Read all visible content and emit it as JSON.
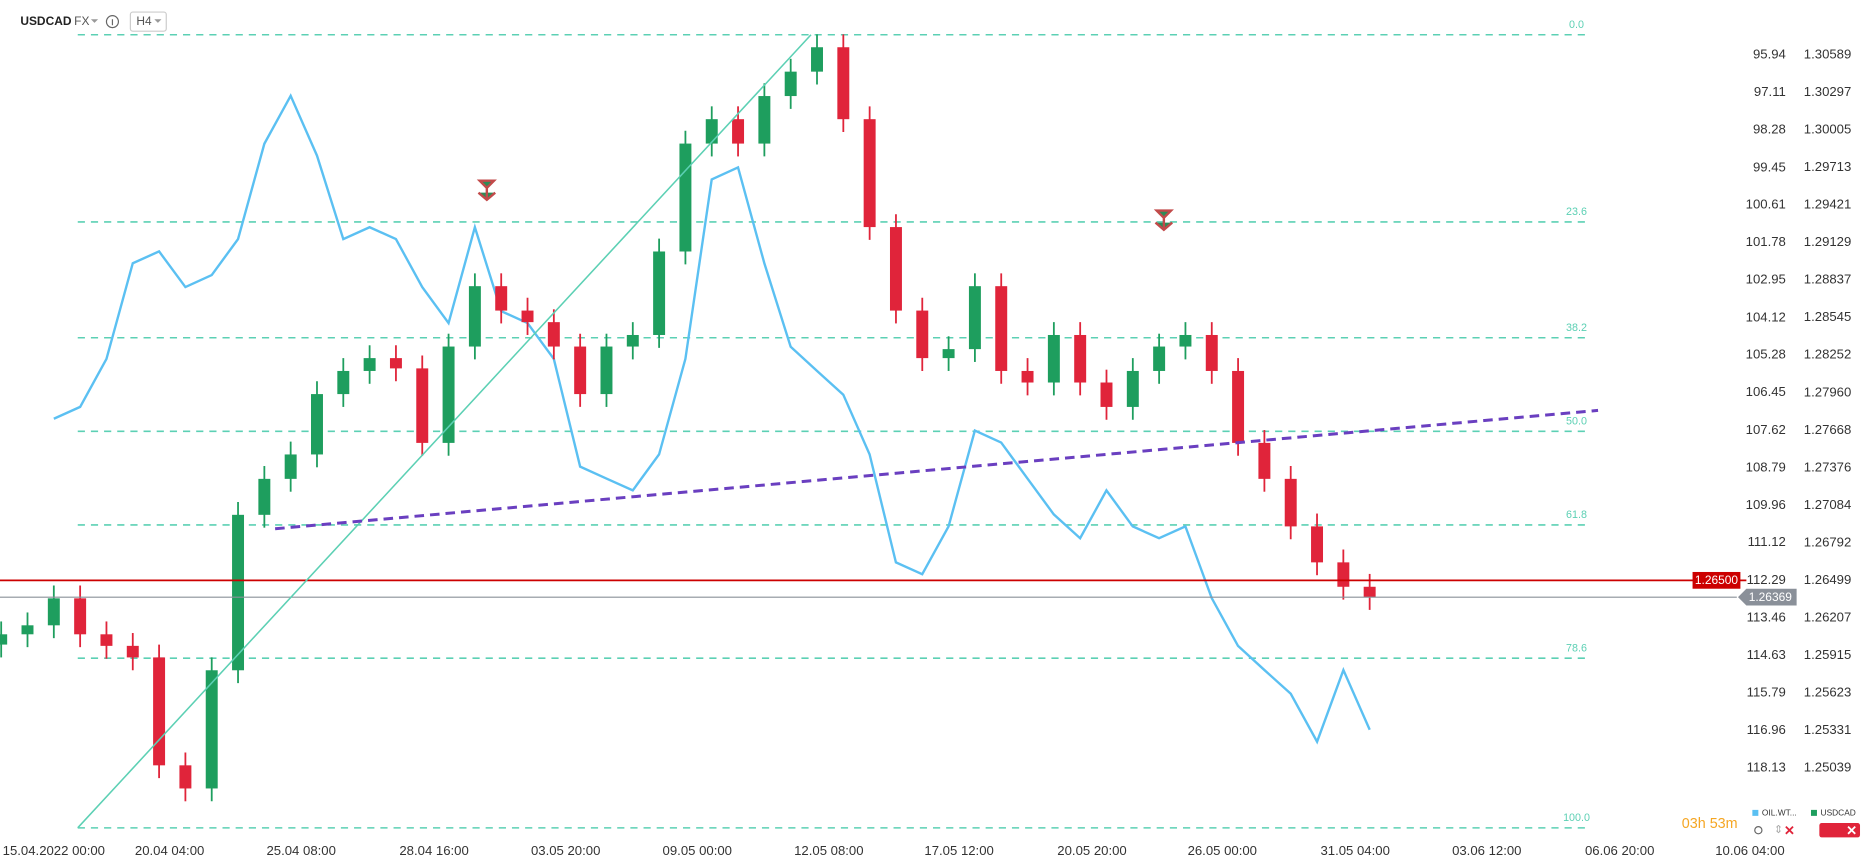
{
  "header": {
    "symbol": "USDCAD",
    "market": "FX",
    "timeframe": "H4"
  },
  "countdown": "03h 53m",
  "chart_data": {
    "type": "candlestick",
    "x": [
      0,
      1,
      2,
      3,
      4,
      5,
      6,
      7,
      8,
      9,
      10,
      11,
      12,
      13,
      14,
      15,
      16,
      17,
      18,
      19,
      20,
      21,
      22,
      23,
      24,
      25,
      26,
      27,
      28,
      29,
      30,
      31,
      32,
      33,
      34,
      35,
      36,
      37,
      38,
      39,
      40,
      41,
      42,
      43,
      44,
      45,
      46,
      47,
      48,
      49,
      50,
      51,
      52
    ],
    "xlim": [
      -0.045,
      70.86
    ],
    "xticks": [
      {
        "value": 2,
        "label": "15.04.2022  00:00"
      },
      {
        "value": 6.4,
        "label": "20.04  04:00"
      },
      {
        "value": 11.4,
        "label": "25.04  08:00"
      },
      {
        "value": 16.45,
        "label": "28.04  16:00"
      },
      {
        "value": 21.45,
        "label": "03.05  20:00"
      },
      {
        "value": 26.45,
        "label": "09.05  00:00"
      },
      {
        "value": 31.45,
        "label": "12.05  08:00"
      },
      {
        "value": 36.4,
        "label": "17.05  12:00"
      },
      {
        "value": 41.45,
        "label": "20.05  20:00"
      },
      {
        "value": 46.4,
        "label": "26.05  00:00"
      },
      {
        "value": 51.45,
        "label": "31.05  04:00"
      },
      {
        "value": 56.45,
        "label": "03.06  12:00"
      },
      {
        "value": 61.5,
        "label": "06.06  20:00"
      },
      {
        "value": 66.45,
        "label": "10.06  04:00"
      }
    ],
    "ylim": [
      1.24499,
      1.31017
    ],
    "yticks": [
      1.30589,
      1.30297,
      1.30005,
      1.29713,
      1.29421,
      1.29129,
      1.28837,
      1.28545,
      1.28252,
      {
        "value": 1.2796,
        "label": "1.27960"
      },
      1.27668,
      1.27376,
      1.27084,
      1.26792,
      1.26499,
      1.26207,
      1.25915,
      1.25623,
      1.25331,
      1.25039
    ],
    "y2lim": [
      94.23,
      120.29
    ],
    "y2_inverted": true,
    "y2ticks": [
      95.94,
      97.11,
      98.28,
      99.45,
      100.61,
      101.78,
      102.95,
      104.12,
      105.28,
      106.45,
      107.62,
      108.79,
      109.96,
      111.12,
      112.29,
      113.46,
      114.63,
      115.79,
      116.96,
      118.13
    ],
    "series": [
      {
        "name": "OIL.WT...",
        "color": "#5bc0f2",
        "axis": "y2",
        "values": [
          null,
          null,
          107.26,
          106.89,
          105.4,
          102.42,
          102.05,
          103.16,
          102.79,
          101.67,
          98.7,
          97.21,
          99.07,
          101.67,
          101.3,
          101.67,
          103.16,
          104.28,
          101.3,
          103.91,
          104.28,
          105.4,
          108.75,
          109.12,
          109.49,
          108.37,
          105.4,
          99.81,
          99.44,
          102.42,
          105.02,
          105.77,
          106.51,
          108.37,
          111.73,
          112.1,
          110.61,
          107.63,
          108.0,
          109.12,
          110.24,
          110.98,
          109.49,
          110.61,
          110.98,
          110.61,
          112.84,
          114.33,
          115.08,
          115.82,
          117.31,
          115.08,
          116.94
        ]
      },
      {
        "name": "USDCAD",
        "color": "#1e9e5e",
        "up_color": "#1e9e5e",
        "down_color": "#e0243a",
        "open": [
          1.26,
          1.2608,
          1.2615,
          1.2636,
          1.2608,
          1.2599,
          1.259,
          1.2506,
          1.2488,
          1.258,
          1.2701,
          1.2729,
          1.2748,
          1.2795,
          1.2813,
          1.2823,
          1.2815,
          1.2757,
          1.2832,
          1.2879,
          1.286,
          1.2851,
          1.2832,
          1.2795,
          1.2832,
          1.2841,
          1.2906,
          1.299,
          1.3009,
          1.299,
          1.3027,
          1.3046,
          1.3065,
          1.3009,
          1.2925,
          1.286,
          1.2823,
          1.283,
          1.2879,
          1.2813,
          1.2804,
          1.2841,
          1.2804,
          1.2785,
          1.2813,
          1.2832,
          1.2841,
          1.2813,
          1.2757,
          1.2729,
          1.2692,
          1.2664,
          1.2645
        ],
        "high": [
          1.2618,
          1.2625,
          1.2646,
          1.2646,
          1.2618,
          1.2609,
          1.26,
          1.2516,
          1.259,
          1.2711,
          1.2739,
          1.2758,
          1.2805,
          1.2823,
          1.2833,
          1.2833,
          1.2825,
          1.2842,
          1.2889,
          1.2889,
          1.287,
          1.2861,
          1.2842,
          1.2842,
          1.2851,
          1.2916,
          1.3,
          1.3019,
          1.3019,
          1.3037,
          1.3056,
          1.3075,
          1.3075,
          1.3019,
          1.2935,
          1.287,
          1.284,
          1.2889,
          1.2889,
          1.2823,
          1.2851,
          1.2851,
          1.2814,
          1.2823,
          1.2842,
          1.2851,
          1.2851,
          1.2823,
          1.2767,
          1.2739,
          1.2702,
          1.2674,
          1.2655
        ],
        "low": [
          1.259,
          1.2598,
          1.2605,
          1.2598,
          1.2589,
          1.258,
          1.2496,
          1.2478,
          1.2478,
          1.257,
          1.2691,
          1.2719,
          1.2738,
          1.2785,
          1.2803,
          1.2805,
          1.2747,
          1.2747,
          1.2822,
          1.285,
          1.2841,
          1.2822,
          1.2785,
          1.2785,
          1.2822,
          1.2831,
          1.2896,
          1.298,
          1.298,
          1.298,
          1.3017,
          1.3036,
          1.2999,
          1.2915,
          1.285,
          1.2813,
          1.2813,
          1.282,
          1.2803,
          1.2794,
          1.2794,
          1.2794,
          1.2775,
          1.2775,
          1.2803,
          1.2822,
          1.2803,
          1.2747,
          1.2719,
          1.2682,
          1.2654,
          1.2635,
          1.2627
        ],
        "close": [
          1.2608,
          1.2615,
          1.2636,
          1.2608,
          1.2599,
          1.259,
          1.2506,
          1.2488,
          1.258,
          1.2701,
          1.2729,
          1.2748,
          1.2795,
          1.2813,
          1.2823,
          1.2815,
          1.2757,
          1.2832,
          1.2879,
          1.286,
          1.2851,
          1.2832,
          1.2795,
          1.2832,
          1.2841,
          1.2906,
          1.299,
          1.3009,
          1.299,
          1.3027,
          1.3046,
          1.3065,
          1.3009,
          1.2925,
          1.286,
          1.2823,
          1.283,
          1.2879,
          1.2813,
          1.2804,
          1.2841,
          1.2804,
          1.2785,
          1.2813,
          1.2832,
          1.2841,
          1.2813,
          1.2757,
          1.2729,
          1.2692,
          1.2664,
          1.2645,
          1.2637
        ]
      }
    ],
    "fib": {
      "high": 1.30747,
      "low": 1.24573,
      "color": "#5cd0b4",
      "levels": [
        {
          "value": 0,
          "label": "0.0"
        },
        23.6,
        38.2,
        {
          "value": 50,
          "label": "50.0"
        },
        61.8,
        78.6,
        {
          "value": 100,
          "label": "100.0"
        }
      ]
    },
    "levels": [
      {
        "value": 1.265,
        "label": "1.26500",
        "color": "#cc0000"
      },
      {
        "value": 1.26369,
        "label": "1.26369",
        "color": "#8a9099"
      }
    ]
  }
}
